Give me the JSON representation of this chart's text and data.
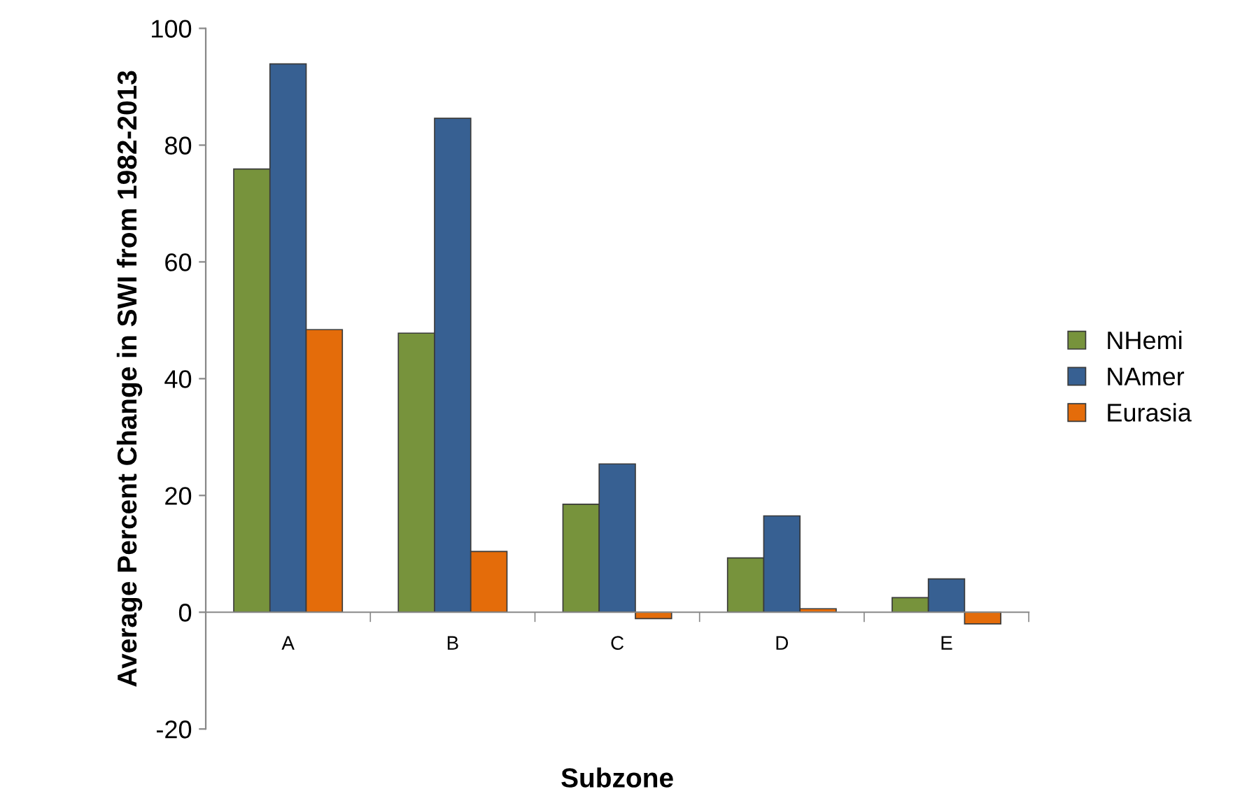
{
  "chart_data": {
    "type": "bar",
    "xlabel": "Subzone",
    "ylabel": "Average Percent Change in SWI from 1982-2013",
    "categories": [
      "A",
      "B",
      "C",
      "D",
      "E"
    ],
    "series": [
      {
        "name": "NHemi",
        "color": "#77933c",
        "values": [
          75.9,
          47.8,
          18.5,
          9.3,
          2.5
        ]
      },
      {
        "name": "NAmer",
        "color": "#376092",
        "values": [
          93.9,
          84.6,
          25.4,
          16.5,
          5.7
        ]
      },
      {
        "name": "Eurasia",
        "color": "#e46c0a",
        "values": [
          48.4,
          10.4,
          -1.1,
          0.6,
          -2.0
        ]
      }
    ],
    "ylim": [
      -20,
      100
    ],
    "yticks": [
      -20,
      0,
      20,
      40,
      60,
      80,
      100
    ],
    "legend": "right"
  }
}
